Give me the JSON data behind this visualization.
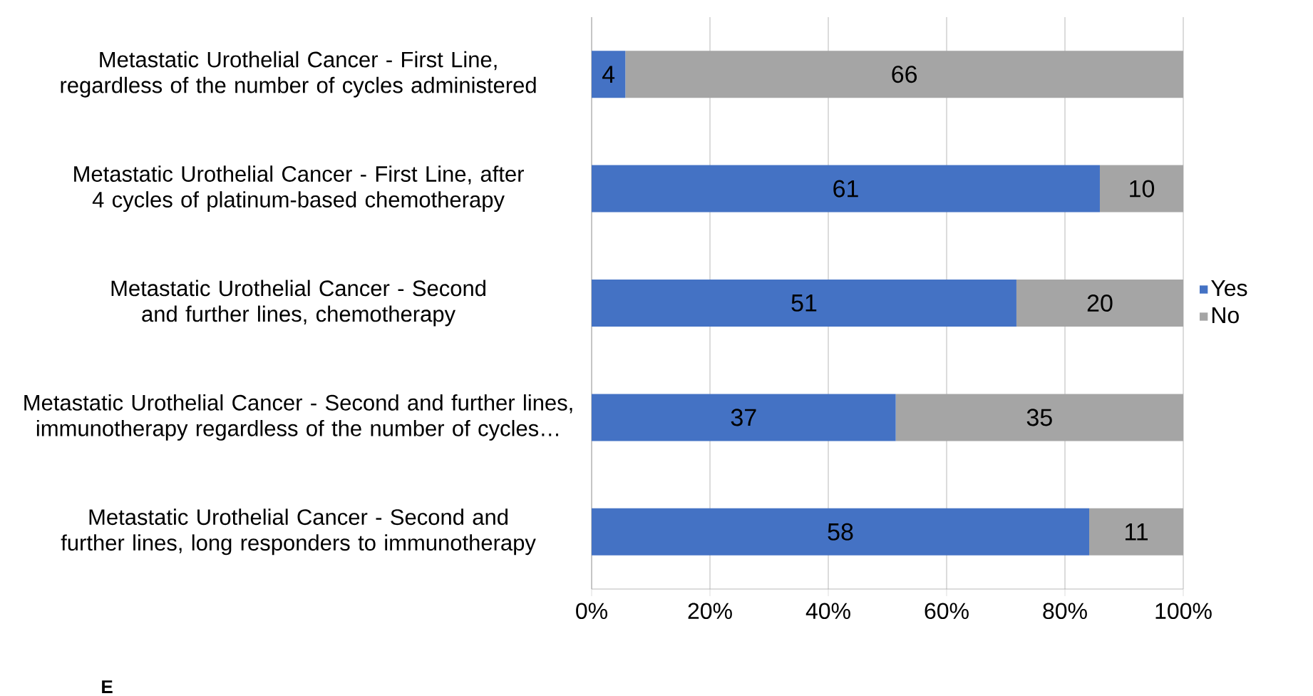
{
  "chart_data": {
    "type": "bar",
    "orientation": "horizontal",
    "stacked": true,
    "categories": [
      "Metastatic Urothelial Cancer - First Line, regardless of the number of cycles administered",
      "Metastatic Urothelial Cancer - First Line, after 4 cycles of platinum-based chemotherapy",
      "Metastatic Urothelial Cancer - Second and further lines, chemotherapy",
      "Metastatic Urothelial Cancer - Second and further lines, immunotherapy regardless of the number of cycles…",
      "Metastatic Urothelial Cancer - Second and further lines, long responders to immunotherapy"
    ],
    "series": [
      {
        "name": "Yes",
        "color": "#4472c4",
        "values": [
          5.7,
          85.9,
          71.8,
          51.4,
          84.1
        ]
      },
      {
        "name": "No",
        "color": "#a5a5a5",
        "values": [
          94.3,
          14.1,
          28.2,
          48.6,
          15.9
        ]
      }
    ],
    "xlim": [
      0,
      100
    ],
    "xticks": [
      {
        "value": 0,
        "label": "0%"
      },
      {
        "value": 20,
        "label": "20%"
      },
      {
        "value": 40,
        "label": "40%"
      },
      {
        "value": 60,
        "label": "60%"
      },
      {
        "value": 80,
        "label": "80%"
      },
      {
        "value": 100,
        "label": "100%"
      }
    ],
    "grid": "x",
    "legend": "right",
    "annotations": [
      "4",
      "66",
      "61",
      "10",
      "51",
      "20",
      "37",
      "35",
      "58",
      "11",
      "E"
    ]
  }
}
